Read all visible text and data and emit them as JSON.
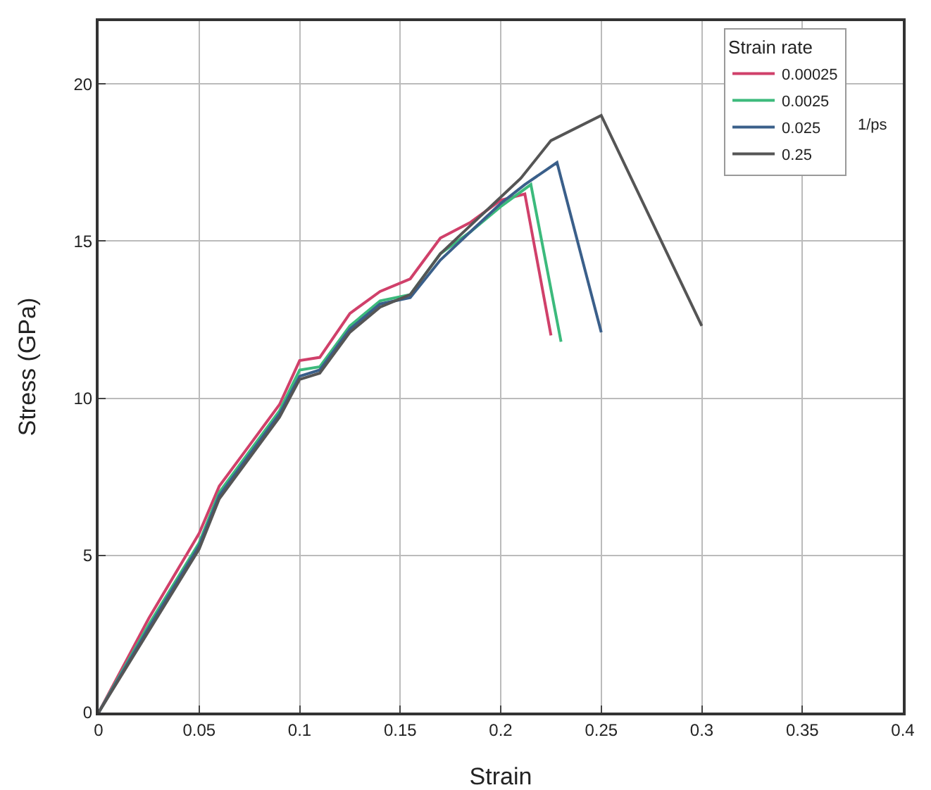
{
  "chart_data": {
    "type": "line",
    "xlabel": "Strain",
    "ylabel": "Stress (GPa)",
    "legend_title": "Strain rate",
    "annotations": [
      "1/ps"
    ],
    "xlim": [
      0,
      0.4
    ],
    "ylim": [
      0,
      22
    ],
    "xticks": [
      0,
      0.05,
      0.1,
      0.15,
      0.2,
      0.25,
      0.3,
      0.35,
      0.4
    ],
    "yticks": [
      0,
      5,
      10,
      15,
      20
    ],
    "grid": true,
    "legend": "top right",
    "marker": "none",
    "line_style": "solid",
    "series": [
      {
        "name": "0.00025",
        "color": "#d0406a",
        "x": [
          0,
          0.025,
          0.05,
          0.06,
          0.075,
          0.09,
          0.1,
          0.11,
          0.125,
          0.14,
          0.155,
          0.17,
          0.185,
          0.2,
          0.212,
          0.225
        ],
        "values": [
          0,
          3,
          5.7,
          7.2,
          8.5,
          9.8,
          11.2,
          11.3,
          12.7,
          13.4,
          13.8,
          15.1,
          15.6,
          16.3,
          16.5,
          12
        ]
      },
      {
        "name": "0.0025",
        "color": "#3cba7c",
        "x": [
          0,
          0.025,
          0.05,
          0.06,
          0.075,
          0.09,
          0.1,
          0.11,
          0.125,
          0.14,
          0.155,
          0.17,
          0.185,
          0.2,
          0.215,
          0.23
        ],
        "values": [
          0,
          2.8,
          5.4,
          7,
          8.3,
          9.6,
          10.9,
          11,
          12.3,
          13.1,
          13.3,
          14.6,
          15.3,
          16.1,
          16.8,
          11.8
        ]
      },
      {
        "name": "0.025",
        "color": "#3a5f8a",
        "x": [
          0,
          0.025,
          0.05,
          0.06,
          0.075,
          0.09,
          0.1,
          0.11,
          0.125,
          0.14,
          0.155,
          0.17,
          0.185,
          0.2,
          0.212,
          0.228,
          0.25
        ],
        "values": [
          0,
          2.7,
          5.3,
          6.9,
          8.2,
          9.5,
          10.7,
          10.9,
          12.2,
          13,
          13.2,
          14.4,
          15.3,
          16.2,
          16.8,
          17.5,
          12.1
        ]
      },
      {
        "name": "0.25",
        "color": "#555555",
        "x": [
          0,
          0.025,
          0.05,
          0.06,
          0.075,
          0.09,
          0.1,
          0.11,
          0.125,
          0.14,
          0.155,
          0.17,
          0.185,
          0.2,
          0.21,
          0.225,
          0.25,
          0.3
        ],
        "values": [
          0,
          2.6,
          5.2,
          6.8,
          8.1,
          9.4,
          10.6,
          10.8,
          12.1,
          12.9,
          13.3,
          14.6,
          15.5,
          16.4,
          17,
          18.2,
          19,
          12.3
        ]
      }
    ]
  }
}
